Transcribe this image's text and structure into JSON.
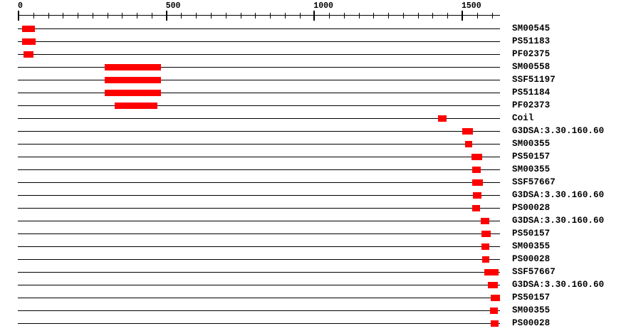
{
  "figure": {
    "background_color": "#ffffff",
    "line_color": "#000000",
    "domain_color": "#ff0000",
    "text_color": "#000000"
  },
  "ruler": {
    "axis_min": 0,
    "axis_max": 1628,
    "minor_tick_interval": 50,
    "major_tick_interval": 500,
    "major_tick_labels": [
      "0",
      "500",
      "1000",
      "1500"
    ]
  },
  "tracks": [
    {
      "label": "SM00545",
      "start": 12,
      "end": 55
    },
    {
      "label": "PS51183",
      "start": 12,
      "end": 58
    },
    {
      "label": "PF02375",
      "start": 17,
      "end": 51
    },
    {
      "label": "SM00558",
      "start": 291,
      "end": 482
    },
    {
      "label": "SSF51197",
      "start": 291,
      "end": 482
    },
    {
      "label": "PS51184",
      "start": 291,
      "end": 482
    },
    {
      "label": "PF02373",
      "start": 325,
      "end": 470
    },
    {
      "label": "Coil",
      "start": 1418,
      "end": 1447
    },
    {
      "label": "G3DSA:3.30.160.60",
      "start": 1500,
      "end": 1536
    },
    {
      "label": "SM00355",
      "start": 1510,
      "end": 1534
    },
    {
      "label": "PS50157",
      "start": 1531,
      "end": 1567
    },
    {
      "label": "SM00355",
      "start": 1534,
      "end": 1563
    },
    {
      "label": "SSF57667",
      "start": 1534,
      "end": 1570
    },
    {
      "label": "G3DSA:3.30.160.60",
      "start": 1536,
      "end": 1565
    },
    {
      "label": "PS00028",
      "start": 1534,
      "end": 1560
    },
    {
      "label": "G3DSA:3.30.160.60",
      "start": 1563,
      "end": 1592
    },
    {
      "label": "PS50157",
      "start": 1565,
      "end": 1596
    },
    {
      "label": "SM00355",
      "start": 1565,
      "end": 1592
    },
    {
      "label": "PS00028",
      "start": 1567,
      "end": 1592
    },
    {
      "label": "SSF57667",
      "start": 1575,
      "end": 1623
    },
    {
      "label": "G3DSA:3.30.160.60",
      "start": 1587,
      "end": 1620
    },
    {
      "label": "PS50157",
      "start": 1596,
      "end": 1628
    },
    {
      "label": "SM00355",
      "start": 1594,
      "end": 1620
    },
    {
      "label": "PS00028",
      "start": 1596,
      "end": 1623
    }
  ]
}
